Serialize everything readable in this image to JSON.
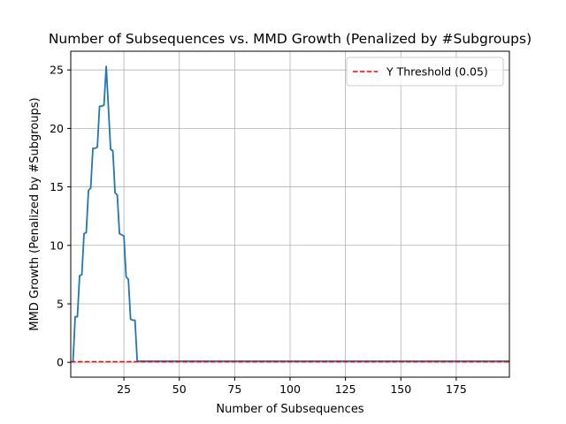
{
  "chart_data": {
    "type": "line",
    "title": "Number of Subsequences vs. MMD Growth (Penalized by #Subgroups)",
    "xlabel": "Number of Subsequences",
    "ylabel": "MMD Growth (Penalized by #Subgroups)",
    "xlim": [
      1,
      199
    ],
    "ylim": [
      -1.27,
      26.6
    ],
    "xticks": [
      25,
      50,
      75,
      100,
      125,
      150,
      175
    ],
    "yticks": [
      0,
      5,
      10,
      15,
      20,
      25
    ],
    "grid": true,
    "legend": "top-right",
    "series": [
      {
        "color": "#1f77b4",
        "style": "solid",
        "points": [
          [
            2,
            0.0
          ],
          [
            3,
            3.9
          ],
          [
            4,
            3.9
          ],
          [
            5,
            7.4
          ],
          [
            6,
            7.5
          ],
          [
            7,
            11.0
          ],
          [
            8,
            11.1
          ],
          [
            9,
            14.7
          ],
          [
            10,
            14.9
          ],
          [
            11,
            18.3
          ],
          [
            12,
            18.3
          ],
          [
            13,
            18.4
          ],
          [
            14,
            21.9
          ],
          [
            15,
            21.9
          ],
          [
            16,
            22.0
          ],
          [
            17,
            25.3
          ],
          [
            18,
            21.8
          ],
          [
            19,
            18.2
          ],
          [
            20,
            18.1
          ],
          [
            21,
            14.5
          ],
          [
            22,
            14.3
          ],
          [
            23,
            11.0
          ],
          [
            24,
            10.9
          ],
          [
            25,
            10.8
          ],
          [
            26,
            7.3
          ],
          [
            27,
            7.1
          ],
          [
            28,
            3.7
          ],
          [
            29,
            3.6
          ],
          [
            30,
            3.6
          ],
          [
            31,
            0.1
          ],
          [
            32,
            0.1
          ],
          [
            50,
            0.1
          ],
          [
            100,
            0.1
          ],
          [
            150,
            0.1
          ],
          [
            199,
            0.1
          ]
        ]
      },
      {
        "name": "Y Threshold (0.05)",
        "color": "#ff0000",
        "style": "dashed",
        "points": [
          [
            1,
            0.05
          ],
          [
            199,
            0.05
          ]
        ]
      }
    ]
  }
}
